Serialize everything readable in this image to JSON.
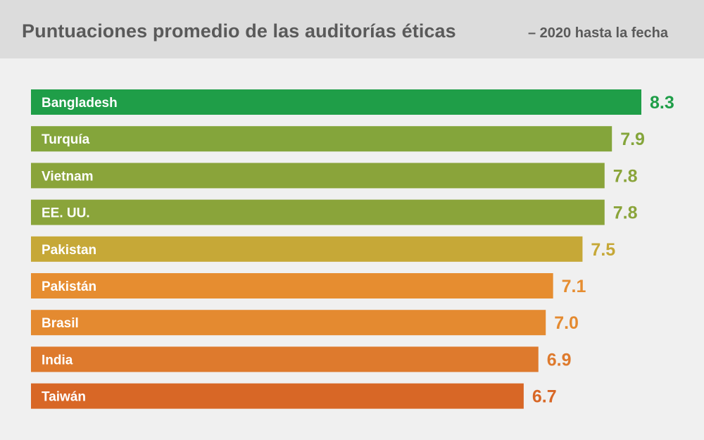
{
  "chart_data": {
    "type": "bar",
    "orientation": "horizontal",
    "title": "Puntuaciones promedio de las auditorías éticas",
    "subtitle": "– 2020 hasta la fecha",
    "categories": [
      "Bangladesh",
      "Turquía",
      "Vietnam",
      "EE. UU.",
      "Pakistan",
      "Pakistán",
      "Brasil",
      "India",
      "Taiwán"
    ],
    "values": [
      8.3,
      7.9,
      7.8,
      7.8,
      7.5,
      7.1,
      7.0,
      6.9,
      6.7
    ],
    "value_labels": [
      "8.3",
      "7.9",
      "7.8",
      "7.8",
      "7.5",
      "7.1",
      "7.0",
      "6.9",
      "6.7"
    ],
    "colors": [
      "#1f9e48",
      "#84a53b",
      "#8aa43a",
      "#8aa43a",
      "#c6a837",
      "#e68d30",
      "#e48a30",
      "#de7a2d",
      "#d86726"
    ],
    "xlim": [
      0,
      8.3
    ],
    "grid": false,
    "legend": "none"
  }
}
